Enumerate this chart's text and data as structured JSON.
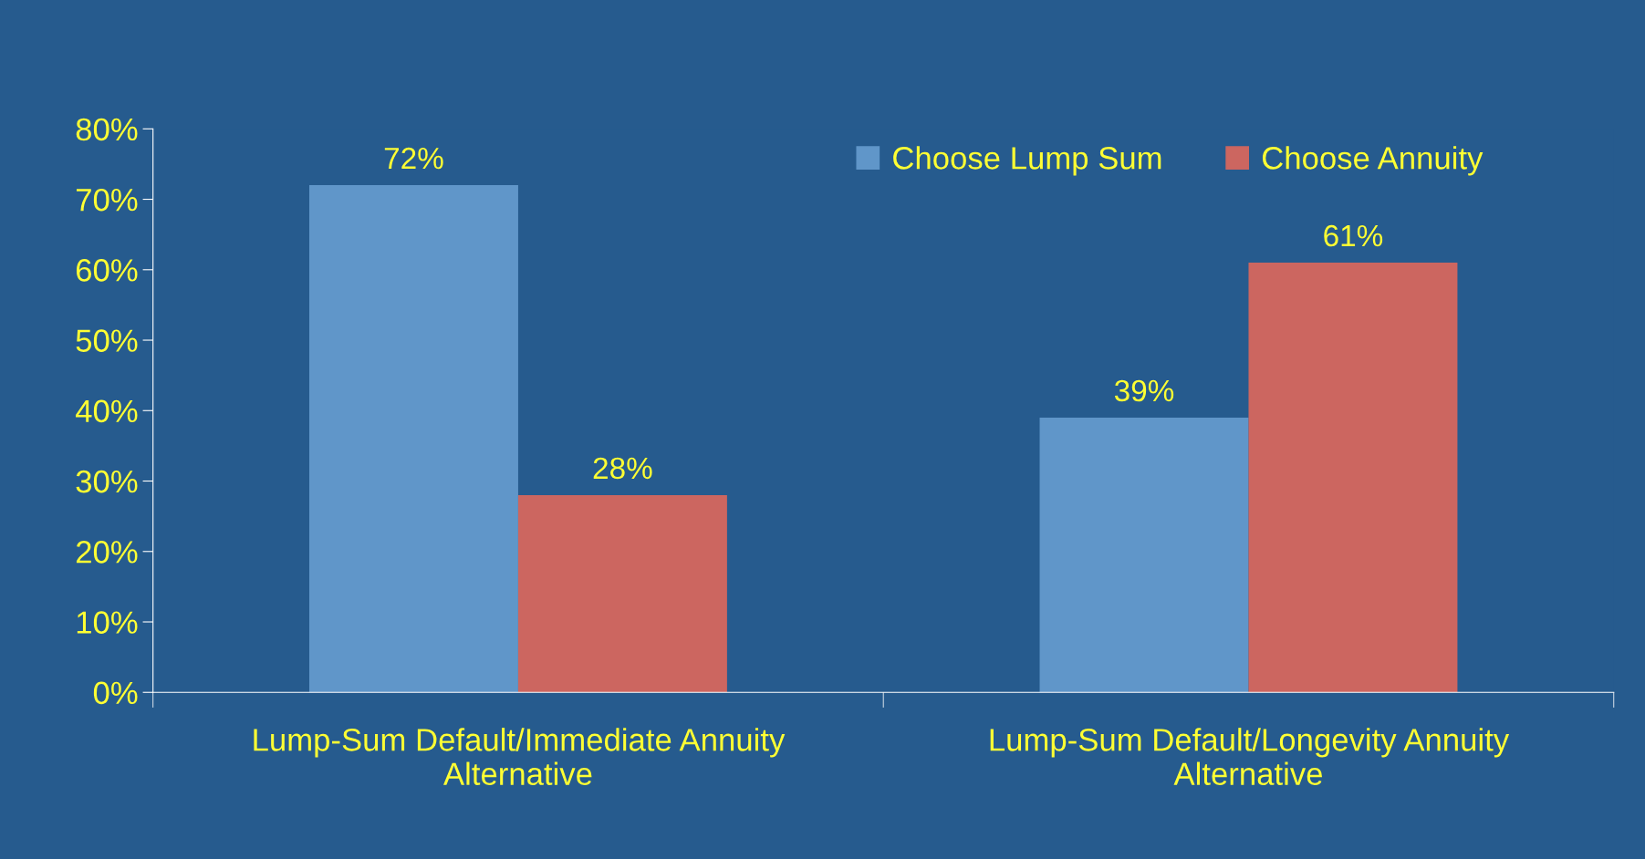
{
  "chart_data": {
    "type": "bar",
    "categories": [
      "Lump-Sum Default/Immediate Annuity\nAlternative",
      "Lump-Sum Default/Longevity Annuity\nAlternative"
    ],
    "series": [
      {
        "name": "Choose Lump Sum",
        "color": "#6096c9",
        "values": [
          72,
          39
        ],
        "value_labels": [
          "72%",
          "39%"
        ]
      },
      {
        "name": "Choose Annuity",
        "color": "#cc6660",
        "values": [
          28,
          61
        ],
        "value_labels": [
          "28%",
          "61%"
        ]
      }
    ],
    "ylim": [
      0,
      80
    ],
    "yticks": [
      {
        "value": 0,
        "label": "0%"
      },
      {
        "value": 10,
        "label": "10%"
      },
      {
        "value": 20,
        "label": "20%"
      },
      {
        "value": 30,
        "label": "30%"
      },
      {
        "value": 40,
        "label": "40%"
      },
      {
        "value": 50,
        "label": "50%"
      },
      {
        "value": 60,
        "label": "60%"
      },
      {
        "value": 70,
        "label": "70%"
      },
      {
        "value": 80,
        "label": "80%"
      }
    ],
    "legend": "top right",
    "grid": false
  }
}
